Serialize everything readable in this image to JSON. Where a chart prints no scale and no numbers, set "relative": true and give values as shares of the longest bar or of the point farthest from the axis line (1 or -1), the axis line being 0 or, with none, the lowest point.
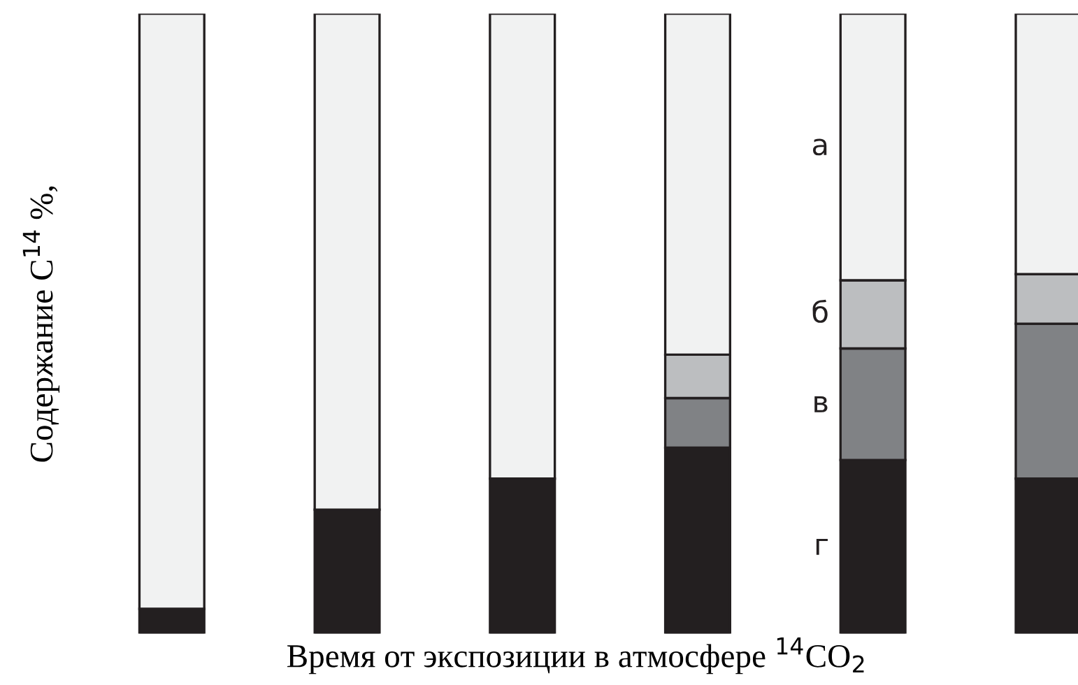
{
  "chart_data": {
    "type": "bar",
    "stacked": true,
    "relative": true,
    "xlabel": "Время от экспозиции в атмосфере $^{14}$CO$_{2}$",
    "ylabel": "Содержание C$^{14}$ %,",
    "categories": [
      null,
      null,
      null,
      null,
      null,
      null
    ],
    "tick_labels": false,
    "legend": false,
    "series": [
      {
        "name": "г",
        "color": "#231f20",
        "values": [
          0.04,
          0.2,
          0.25,
          0.3,
          0.28,
          0.25
        ]
      },
      {
        "name": "в",
        "color": "#808285",
        "values": [
          0,
          0,
          0,
          0.08,
          0.18,
          0.25
        ]
      },
      {
        "name": "б",
        "color": "#bcbec0",
        "values": [
          0,
          0,
          0,
          0.07,
          0.11,
          0.08
        ]
      },
      {
        "name": "а",
        "color": "#f1f2f2",
        "values": [
          0.96,
          0.8,
          0.75,
          0.55,
          0.43,
          0.42
        ]
      }
    ]
  }
}
